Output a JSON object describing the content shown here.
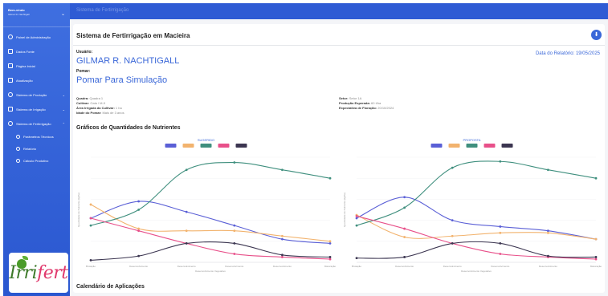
{
  "sidebar": {
    "user_line1": "Bem-vindo",
    "user_line2": "Gilmar R. Nachtigall",
    "items": [
      {
        "label": "Painel de Administração",
        "icon": "dashboard-icon"
      },
      {
        "label": "Dados Fonte",
        "icon": "database-icon"
      },
      {
        "label": "Página Inicial",
        "icon": "home-icon"
      },
      {
        "label": "Atualização",
        "icon": "refresh-icon"
      },
      {
        "label": "Sistema de Produção",
        "icon": "plant-icon"
      },
      {
        "label": "Sistema de Irrigação",
        "icon": "water-icon"
      },
      {
        "label": "Sistema de Fertirrigação",
        "icon": "fertigation-icon"
      }
    ],
    "subitems": [
      {
        "label": "Parâmetros Técnicos",
        "icon": "circle-icon"
      },
      {
        "label": "Relatório",
        "icon": "circle-icon"
      },
      {
        "label": "Cálculo Produtivo",
        "icon": "circle-icon"
      }
    ],
    "logo_text_green": "Irri",
    "logo_text_pink": "fert"
  },
  "header": {
    "title": "Sistema de Fertirrigação"
  },
  "report": {
    "title": "Sistema de Fertirrigação em Macieira",
    "user_label": "Usuário:",
    "user_name": "GILMAR R. NACHTIGALL",
    "orchard_label": "Pomar:",
    "orchard_name": "Pomar Para Simulação",
    "date_label": "Data do Relatório: 19/05/2025",
    "left_info": [
      {
        "k": "Quadra:",
        "v": "Quadra 1"
      },
      {
        "k": "Cultivar:",
        "v": "Gala / M-9"
      },
      {
        "k": "Área Irrigada da Cultivar:",
        "v": "1 ha"
      },
      {
        "k": "Idade do Pomar:",
        "v": "Mais de 3 anos"
      }
    ],
    "right_info": [
      {
        "k": "Setor:",
        "v": "Setor 1A"
      },
      {
        "k": "Produção Esperada:",
        "v": "60 t/ha"
      },
      {
        "k": "Expectativa de Floração:",
        "v": "20/10/2024"
      }
    ],
    "charts_title": "Gráficos de Quantidades de Nutrientes",
    "calendar_title": "Calendário de Aplicações"
  },
  "colors": {
    "accent": "#3a67d8",
    "sidebar": "#2f5bd4",
    "series": [
      "#5a5fd6",
      "#f2b36e",
      "#3f8f7e",
      "#e8508a",
      "#3b3550"
    ]
  },
  "chart_data": [
    {
      "type": "line",
      "title": "SUGERIDO",
      "categories": [
        "Brotação",
        "Desenvolvimento",
        "Desenvolvimento",
        "Desenvolvimento",
        "Desenvolvimento",
        "Maturação"
      ],
      "xlabel": "Desenvolvimento Vegetativo",
      "ylabel": "Quantidade de Nutriente (kg/ha)",
      "ylim": [
        0,
        100
      ],
      "series": [
        {
          "values": [
            42,
            58,
            48,
            35,
            22,
            18
          ]
        },
        {
          "values": [
            55,
            32,
            30,
            30,
            25,
            20
          ]
        },
        {
          "values": [
            35,
            50,
            88,
            95,
            88,
            80
          ]
        },
        {
          "values": [
            42,
            30,
            18,
            8,
            5,
            3
          ]
        },
        {
          "values": [
            2,
            6,
            18,
            18,
            7,
            5
          ]
        }
      ]
    },
    {
      "type": "line",
      "title": "PROPOSTA",
      "categories": [
        "Brotação",
        "Desenvolvimento",
        "Desenvolvimento",
        "Desenvolvimento",
        "Desenvolvimento",
        "Maturação"
      ],
      "xlabel": "Desenvolvimento Vegetativo",
      "ylabel": "Quantidade de Nutriente (kg/ha)",
      "ylim": [
        0,
        100
      ],
      "series": [
        {
          "values": [
            42,
            62,
            40,
            34,
            30,
            22
          ]
        },
        {
          "values": [
            45,
            24,
            25,
            28,
            28,
            22
          ]
        },
        {
          "values": [
            35,
            52,
            90,
            96,
            88,
            80
          ]
        },
        {
          "values": [
            44,
            32,
            18,
            8,
            5,
            3
          ]
        },
        {
          "values": [
            4,
            5,
            18,
            18,
            6,
            5
          ]
        }
      ]
    }
  ]
}
